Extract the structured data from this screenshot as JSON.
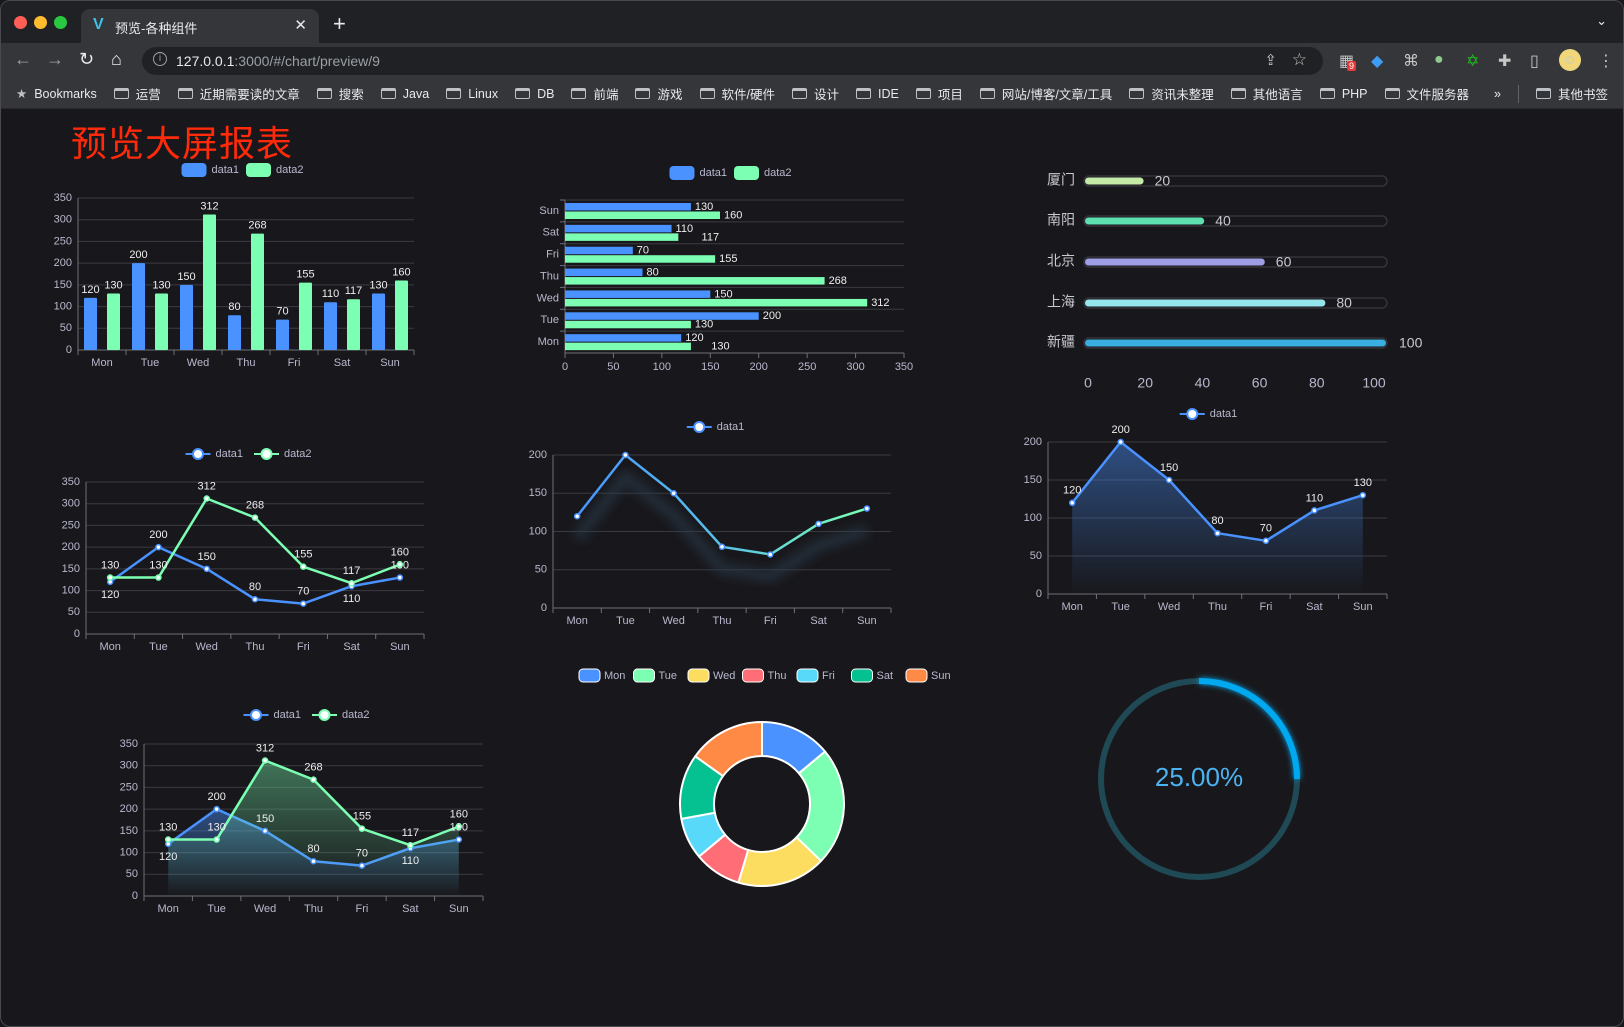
{
  "browser": {
    "tab_title": "预览-各种组件",
    "url_host": "127.0.0.1",
    "url_path": ":3000/#/chart/preview/9",
    "extension_badge": "9",
    "bookmarks": [
      "Bookmarks",
      "运营",
      "近期需要读的文章",
      "搜索",
      "Java",
      "Linux",
      "DB",
      "前端",
      "游戏",
      "软件/硬件",
      "设计",
      "IDE",
      "项目",
      "网站/博客/文章/工具",
      "资讯未整理",
      "其他语言",
      "PHP",
      "文件服务器"
    ],
    "bookmarks_overflow": "»",
    "other_bookmarks": "其他书签"
  },
  "page": {
    "title": "预览大屏报表"
  },
  "colors": {
    "data1": "#4992ff",
    "data2": "#7cffb2",
    "pie": [
      "#4992ff",
      "#7cffb2",
      "#fddd60",
      "#ff6e76",
      "#58d9f9",
      "#05c091",
      "#ff8a45"
    ],
    "progress": [
      "#c4eba6",
      "#5ee0b0",
      "#9e9ee6",
      "#95e6ec",
      "#3aaee0"
    ],
    "gauge": "#00a8f0",
    "gauge_track": "#1f4a55",
    "title": "#ff2a0a"
  },
  "chart_data": [
    {
      "type": "bar",
      "orientation": "vertical",
      "legend": [
        "data1",
        "data2"
      ],
      "categories": [
        "Mon",
        "Tue",
        "Wed",
        "Thu",
        "Fri",
        "Sat",
        "Sun"
      ],
      "series": [
        {
          "name": "data1",
          "values": [
            120,
            200,
            150,
            80,
            70,
            110,
            130
          ]
        },
        {
          "name": "data2",
          "values": [
            130,
            130,
            312,
            268,
            155,
            117,
            160
          ]
        }
      ],
      "ylim": [
        0,
        350
      ],
      "yticks": [
        0,
        50,
        100,
        150,
        200,
        250,
        300,
        350
      ],
      "data_labels": true,
      "grid": true
    },
    {
      "type": "bar",
      "orientation": "horizontal",
      "legend": [
        "data1",
        "data2"
      ],
      "categories": [
        "Mon",
        "Tue",
        "Wed",
        "Thu",
        "Fri",
        "Sat",
        "Sun"
      ],
      "series": [
        {
          "name": "data1",
          "values": [
            120,
            200,
            150,
            80,
            70,
            110,
            130
          ]
        },
        {
          "name": "data2",
          "values": [
            130,
            130,
            312,
            268,
            155,
            117,
            160
          ]
        }
      ],
      "xlim": [
        0,
        350
      ],
      "xticks": [
        0,
        50,
        100,
        150,
        200,
        250,
        300,
        350
      ],
      "data_labels": true,
      "grid": true
    },
    {
      "type": "bar",
      "orientation": "horizontal",
      "style": "progress",
      "categories": [
        "厦门",
        "南阳",
        "北京",
        "上海",
        "新疆"
      ],
      "values": [
        20,
        40,
        60,
        80,
        100
      ],
      "xlim": [
        0,
        100
      ],
      "xticks": [
        0,
        20,
        40,
        60,
        80,
        100
      ],
      "data_labels": true
    },
    {
      "type": "line",
      "legend": [
        "data1",
        "data2"
      ],
      "categories": [
        "Mon",
        "Tue",
        "Wed",
        "Thu",
        "Fri",
        "Sat",
        "Sun"
      ],
      "series": [
        {
          "name": "data1",
          "values": [
            120,
            200,
            150,
            80,
            70,
            110,
            130
          ]
        },
        {
          "name": "data2",
          "values": [
            130,
            130,
            312,
            268,
            155,
            117,
            160
          ]
        }
      ],
      "ylim": [
        0,
        350
      ],
      "yticks": [
        0,
        50,
        100,
        150,
        200,
        250,
        300,
        350
      ],
      "data_labels": true,
      "grid": true
    },
    {
      "type": "line",
      "legend": [
        "data1"
      ],
      "gradient_line": true,
      "categories": [
        "Mon",
        "Tue",
        "Wed",
        "Thu",
        "Fri",
        "Sat",
        "Sun"
      ],
      "series": [
        {
          "name": "data1",
          "values": [
            120,
            200,
            150,
            80,
            70,
            110,
            130
          ]
        }
      ],
      "ylim": [
        0,
        200
      ],
      "yticks": [
        0,
        50,
        100,
        150,
        200
      ],
      "data_labels": false,
      "grid": true
    },
    {
      "type": "area",
      "legend": [
        "data1"
      ],
      "categories": [
        "Mon",
        "Tue",
        "Wed",
        "Thu",
        "Fri",
        "Sat",
        "Sun"
      ],
      "series": [
        {
          "name": "data1",
          "values": [
            120,
            200,
            150,
            80,
            70,
            110,
            130
          ]
        }
      ],
      "ylim": [
        0,
        200
      ],
      "yticks": [
        0,
        50,
        100,
        150,
        200
      ],
      "data_labels": true,
      "grid": true
    },
    {
      "type": "area",
      "legend": [
        "data1",
        "data2"
      ],
      "categories": [
        "Mon",
        "Tue",
        "Wed",
        "Thu",
        "Fri",
        "Sat",
        "Sun"
      ],
      "series": [
        {
          "name": "data1",
          "values": [
            120,
            200,
            150,
            80,
            70,
            110,
            130
          ]
        },
        {
          "name": "data2",
          "values": [
            130,
            130,
            312,
            268,
            155,
            117,
            160
          ]
        }
      ],
      "ylim": [
        0,
        350
      ],
      "yticks": [
        0,
        50,
        100,
        150,
        200,
        250,
        300,
        350
      ],
      "data_labels": true,
      "grid": true
    },
    {
      "type": "pie",
      "style": "ring",
      "legend": [
        "Mon",
        "Tue",
        "Wed",
        "Thu",
        "Fri",
        "Sat",
        "Sun"
      ],
      "categories": [
        "Mon",
        "Tue",
        "Wed",
        "Thu",
        "Fri",
        "Sat",
        "Sun"
      ],
      "values": [
        120,
        200,
        150,
        80,
        70,
        110,
        130
      ]
    },
    {
      "type": "gauge",
      "value": 0.25,
      "label": "25.00%"
    }
  ]
}
